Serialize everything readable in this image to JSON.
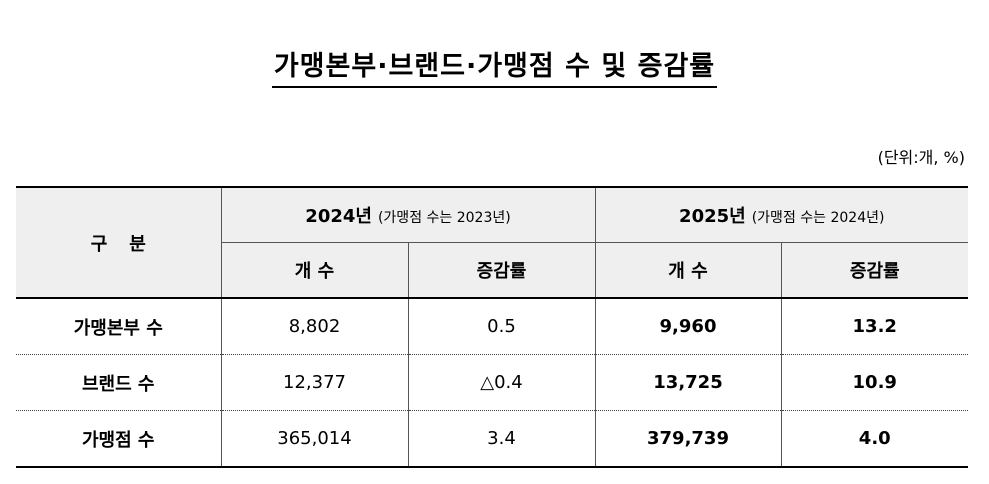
{
  "title": "가맹본부·브랜드·가맹점 수 및 증감률",
  "unit": "(단위:개, %)",
  "header": {
    "category": "구분",
    "group_2024": "2024년",
    "group_2024_note": "(가맹점 수는 2023년)",
    "group_2025": "2025년",
    "group_2025_note": "(가맹점 수는 2024년)",
    "count_label_2024": "개 수",
    "rate_label_2024": "증감률",
    "count_label_2025": "개 수",
    "rate_label_2025": "증감률"
  },
  "rows": [
    {
      "label": "가맹본부 수",
      "count_2024": "8,802",
      "rate_2024": "0.5",
      "count_2025": "9,960",
      "rate_2025": "13.2"
    },
    {
      "label": "브랜드 수",
      "count_2024": "12,377",
      "rate_2024": "△0.4",
      "count_2025": "13,725",
      "rate_2025": "10.9"
    },
    {
      "label": "가맹점 수",
      "count_2024": "365,014",
      "rate_2024": "3.4",
      "count_2025": "379,739",
      "rate_2025": "4.0"
    }
  ]
}
